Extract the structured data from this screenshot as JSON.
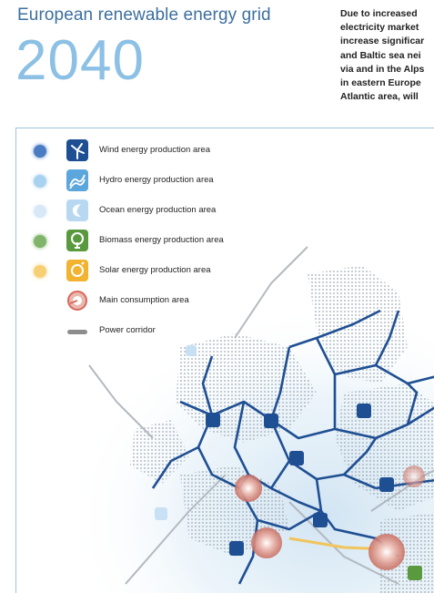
{
  "header": {
    "title": "European renewable energy grid",
    "year": "2040"
  },
  "intro_lines": [
    "Due to increased",
    "electricity market",
    "increase significar",
    "and Baltic sea nei",
    "via and in the Alps",
    "in eastern Europe",
    "Atlantic area, will"
  ],
  "legend": {
    "items": [
      {
        "label": "Wind energy production area",
        "dot_color": "#4a7cc4",
        "icon": "wind-turbine-icon",
        "icon_color": "#1f4f93"
      },
      {
        "label": "Hydro energy production area",
        "dot_color": "#a8d2f0",
        "icon": "hydro-wave-icon",
        "icon_color": "#5ba7dd"
      },
      {
        "label": "Ocean energy production area",
        "dot_color": "#d8e8f6",
        "icon": "ocean-wave-icon",
        "icon_color": "#b8d8f1"
      },
      {
        "label": "Biomass energy production area",
        "dot_color": "#7fb46a",
        "icon": "tree-icon",
        "icon_color": "#5a9a3e"
      },
      {
        "label": "Solar energy production area",
        "dot_color": "#f7cf75",
        "icon": "sun-icon",
        "icon_color": "#f1b330"
      },
      {
        "label": "Main consumption area",
        "dot_color": "",
        "icon": "consumption-spiral-icon",
        "icon_color": "#d9685a"
      },
      {
        "label": "Power corridor",
        "dot_color": "",
        "icon": "power-corridor-line",
        "icon_color": "#8d8d8d"
      }
    ]
  },
  "map": {
    "wind_marker_color": "#1f4f93",
    "corridor_color": "#1f4f93",
    "solar_corridor_color": "#f1c45c",
    "consumption_color": "#c85a50"
  }
}
